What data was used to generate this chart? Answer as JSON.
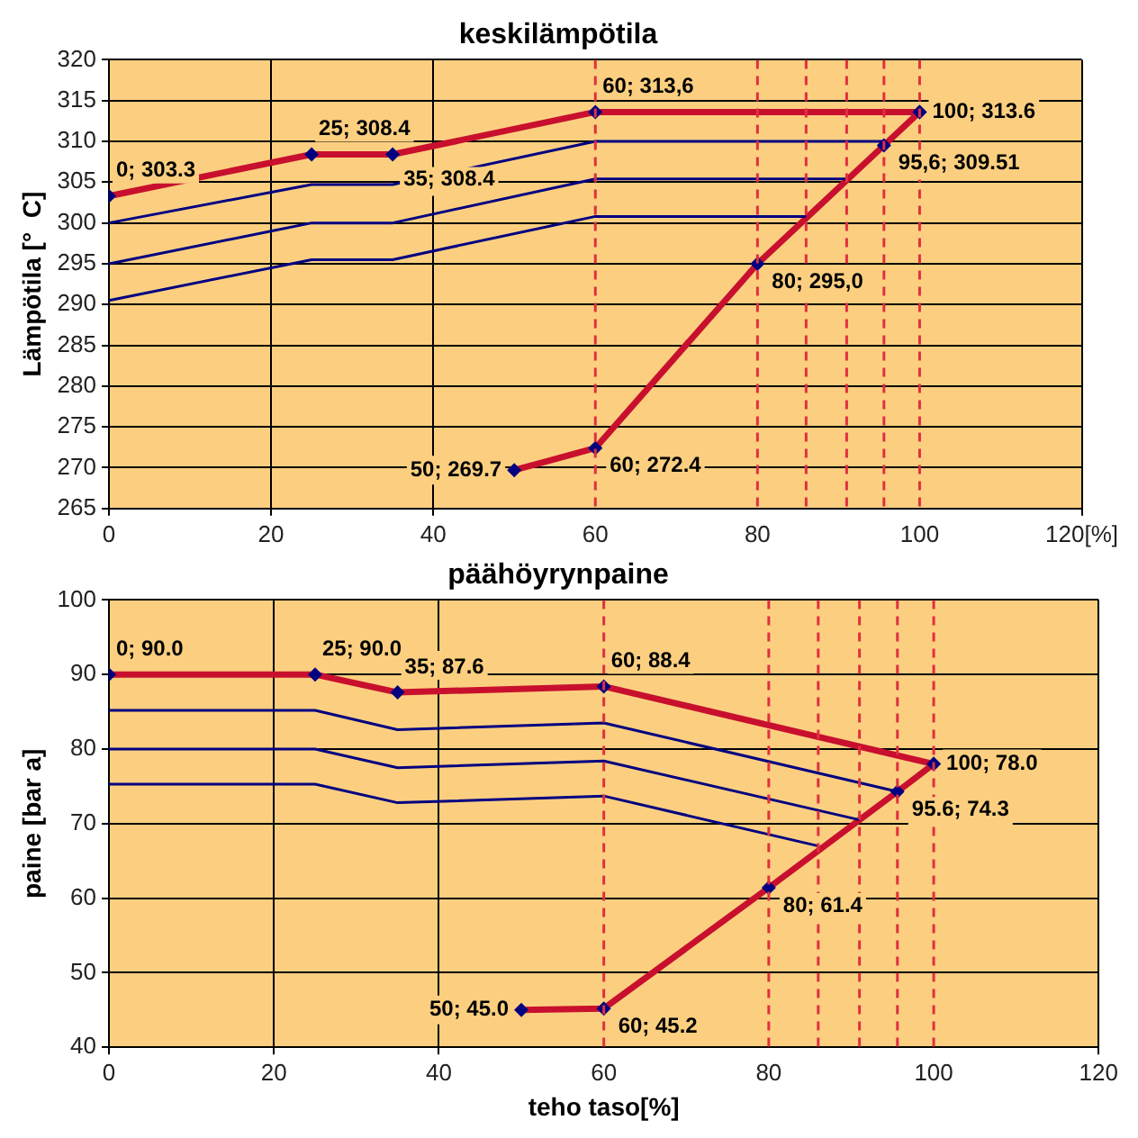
{
  "chart_data": [
    {
      "type": "line",
      "title": "keskilämpötila",
      "ylabel": "Lämpötila [°  C]",
      "xlim": [
        0,
        120
      ],
      "xticks": [
        0,
        20,
        40,
        60,
        80,
        100,
        {
          "value": 120,
          "label": "120[%]"
        }
      ],
      "ylim": [
        265,
        320
      ],
      "yticks": [
        265,
        270,
        275,
        280,
        285,
        290,
        295,
        300,
        305,
        310,
        315,
        320
      ],
      "grid": true,
      "legend": false,
      "series": [
        {
          "color": "#000080",
          "marker": "none",
          "x": [
            0,
            25,
            35,
            60,
            95.6
          ],
          "values": [
            300,
            304.7,
            304.7,
            310,
            310
          ]
        },
        {
          "color": "#000080",
          "marker": "none",
          "x": [
            0,
            25,
            35,
            60,
            91
          ],
          "values": [
            295,
            300,
            300,
            305.4,
            305.4
          ]
        },
        {
          "color": "#000080",
          "marker": "none",
          "x": [
            0,
            25,
            35,
            60,
            86
          ],
          "values": [
            290.5,
            295.5,
            295.5,
            300.8,
            300.8
          ]
        },
        {
          "color": "#c8102e",
          "marker": "diamond",
          "x": [
            0,
            25,
            35,
            60,
            100
          ],
          "values": [
            303.3,
            308.4,
            308.4,
            313.6,
            313.6
          ],
          "value_labels": [
            "0; 303.3",
            "25; 308.4",
            "35; 308.4",
            "60; 313,6",
            "100; 313.6"
          ]
        },
        {
          "color": "#c8102e",
          "marker": "diamond",
          "x": [
            50,
            60,
            80,
            95.6,
            100
          ],
          "values": [
            269.7,
            272.4,
            295.0,
            309.51,
            313.6
          ],
          "value_labels": [
            "50; 269.7",
            "60; 272.4",
            "80; 295,0",
            "95,6; 309.51",
            null
          ]
        }
      ],
      "ref_lines": [
        {
          "axis": "x",
          "value": 60,
          "color": "#e03040",
          "line_style": "dashed"
        },
        {
          "axis": "x",
          "value": 80,
          "color": "#e03040",
          "line_style": "dashed"
        },
        {
          "axis": "x",
          "value": 86,
          "color": "#e03040",
          "line_style": "dashed"
        },
        {
          "axis": "x",
          "value": 91,
          "color": "#e03040",
          "line_style": "dashed"
        },
        {
          "axis": "x",
          "value": 95.6,
          "color": "#e03040",
          "line_style": "dashed"
        },
        {
          "axis": "x",
          "value": 100,
          "color": "#e03040",
          "line_style": "dashed"
        }
      ]
    },
    {
      "type": "line",
      "title": "päähöyrynpaine",
      "xlabel": "teho taso[%]",
      "ylabel": "paine [bar a]",
      "xlim": [
        0,
        120
      ],
      "xticks": [
        0,
        20,
        40,
        60,
        80,
        100,
        120
      ],
      "ylim": [
        40,
        100
      ],
      "yticks": [
        40,
        50,
        60,
        70,
        80,
        90,
        100
      ],
      "grid": true,
      "legend": false,
      "series": [
        {
          "color": "#000080",
          "marker": "none",
          "x": [
            0,
            25,
            35,
            60,
            95.6
          ],
          "values": [
            85.2,
            85.2,
            82.6,
            83.5,
            74.3
          ]
        },
        {
          "color": "#000080",
          "marker": "none",
          "x": [
            0,
            25,
            35,
            60,
            91
          ],
          "values": [
            80,
            80,
            77.5,
            78.4,
            70.5
          ]
        },
        {
          "color": "#000080",
          "marker": "none",
          "x": [
            0,
            25,
            35,
            60,
            86
          ],
          "values": [
            75.3,
            75.3,
            72.8,
            73.7,
            67
          ]
        },
        {
          "color": "#c8102e",
          "marker": "diamond",
          "x": [
            0,
            25,
            35,
            60,
            100
          ],
          "values": [
            90.0,
            90.0,
            87.6,
            88.4,
            78.0
          ],
          "value_labels": [
            "0; 90.0",
            "25; 90.0",
            "35; 87.6",
            "60; 88.4",
            "100; 78.0"
          ]
        },
        {
          "color": "#c8102e",
          "marker": "diamond",
          "x": [
            50,
            60,
            80,
            95.6,
            100
          ],
          "values": [
            45.0,
            45.2,
            61.4,
            74.3,
            78.0
          ],
          "value_labels": [
            "50; 45.0",
            "60; 45.2",
            "80; 61.4",
            "95.6; 74.3",
            null
          ]
        }
      ],
      "ref_lines": [
        {
          "axis": "x",
          "value": 60,
          "color": "#e03040",
          "line_style": "dashed"
        },
        {
          "axis": "x",
          "value": 80,
          "color": "#e03040",
          "line_style": "dashed"
        },
        {
          "axis": "x",
          "value": 86,
          "color": "#e03040",
          "line_style": "dashed"
        },
        {
          "axis": "x",
          "value": 91,
          "color": "#e03040",
          "line_style": "dashed"
        },
        {
          "axis": "x",
          "value": 95.6,
          "color": "#e03040",
          "line_style": "dashed"
        },
        {
          "axis": "x",
          "value": 100,
          "color": "#e03040",
          "line_style": "dashed"
        }
      ]
    }
  ]
}
